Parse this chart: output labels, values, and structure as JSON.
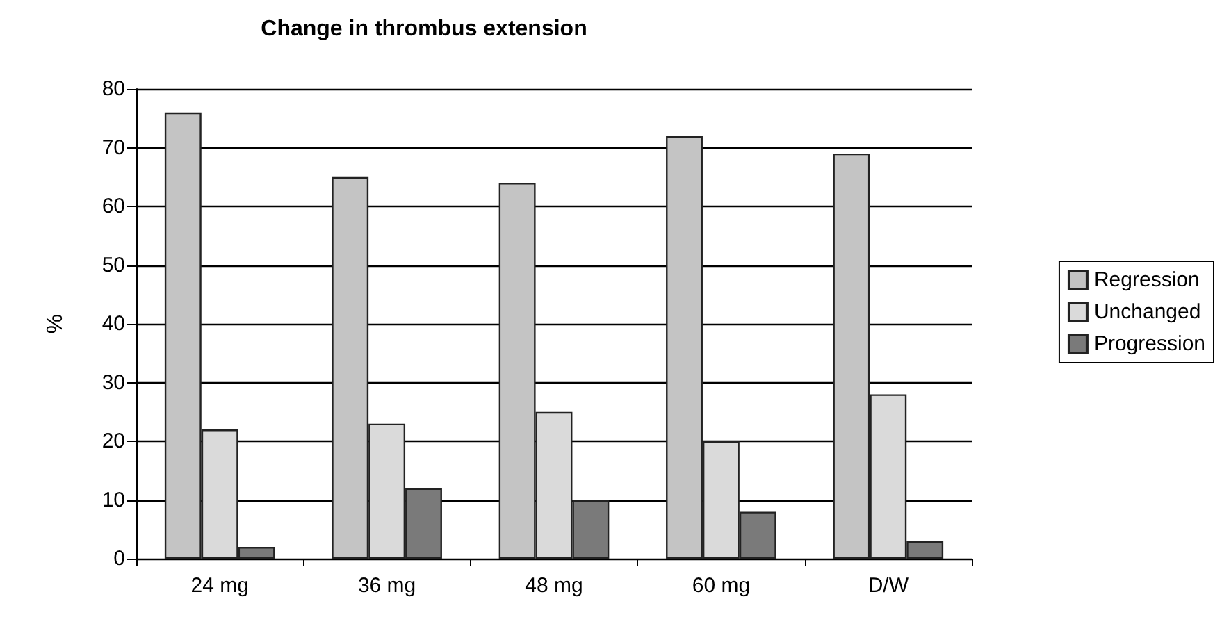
{
  "chart_data": {
    "type": "bar",
    "title": "Change in thrombus extension",
    "ylabel": "%",
    "categories": [
      "24 mg",
      "36 mg",
      "48 mg",
      "60 mg",
      "D/W"
    ],
    "series": [
      {
        "name": "Regression",
        "color": "#c4c4c4",
        "values": [
          76,
          65,
          64,
          72,
          69
        ]
      },
      {
        "name": "Unchanged",
        "color": "#dadada",
        "values": [
          22,
          23,
          25,
          20,
          28
        ]
      },
      {
        "name": "Progression",
        "color": "#7a7a7a",
        "values": [
          2,
          12,
          10,
          8,
          3
        ]
      }
    ],
    "ylim": [
      0,
      80
    ],
    "yticks": [
      0,
      10,
      20,
      30,
      40,
      50,
      60,
      70,
      80
    ],
    "grid": "y",
    "legend": "right"
  }
}
